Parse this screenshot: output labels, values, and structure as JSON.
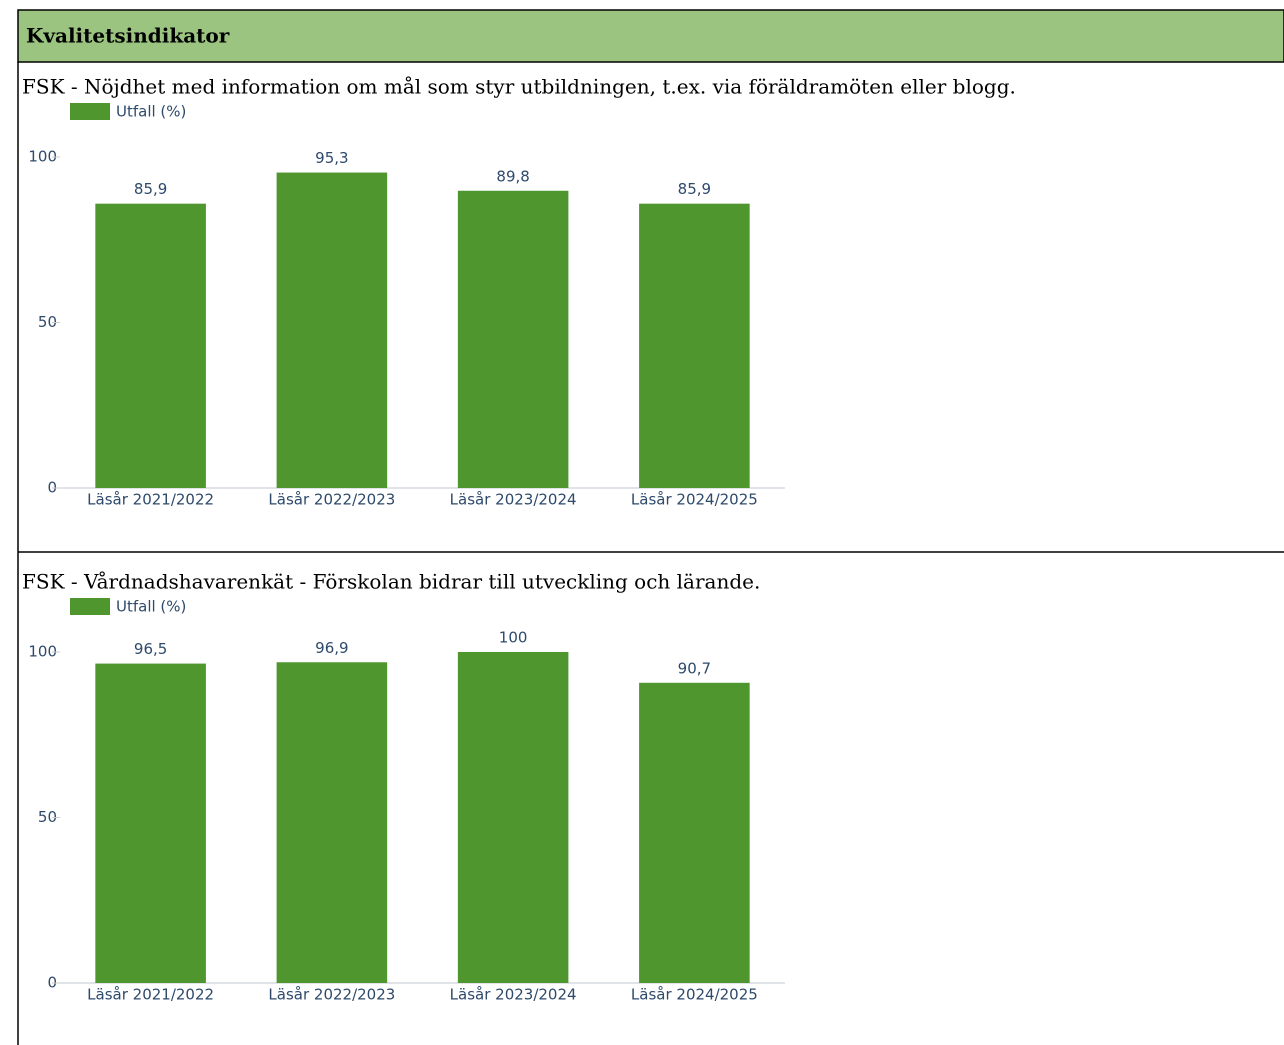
{
  "header": {
    "title": "Kvalitetsindikator"
  },
  "chart_data": [
    {
      "type": "bar",
      "title": "FSK - Nöjdhet med information om mål som styr utbildningen, t.ex. via föräldramöten eller blogg.",
      "categories": [
        "Läsår 2021/2022",
        "Läsår 2022/2023",
        "Läsår 2023/2024",
        "Läsår 2024/2025"
      ],
      "series": [
        {
          "name": "Utfall (%)",
          "color": "#4f962f",
          "values": [
            85.9,
            95.3,
            89.8,
            85.9
          ],
          "value_labels": [
            "85,9",
            "95,3",
            "89,8",
            "85,9"
          ]
        }
      ],
      "ylim": [
        0,
        100
      ],
      "yticks": [
        0,
        50,
        100
      ],
      "grid": false
    },
    {
      "type": "bar",
      "title": "FSK - Vårdnadshavarenkät - Förskolan bidrar till utveckling och lärande.",
      "categories": [
        "Läsår 2021/2022",
        "Läsår 2022/2023",
        "Läsår 2023/2024",
        "Läsår 2024/2025"
      ],
      "series": [
        {
          "name": "Utfall (%)",
          "color": "#4f962f",
          "values": [
            96.5,
            96.9,
            100,
            90.7
          ],
          "value_labels": [
            "96,5",
            "96,9",
            "100",
            "90,7"
          ]
        }
      ],
      "ylim": [
        0,
        100
      ],
      "yticks": [
        0,
        50,
        100
      ],
      "grid": false
    }
  ]
}
